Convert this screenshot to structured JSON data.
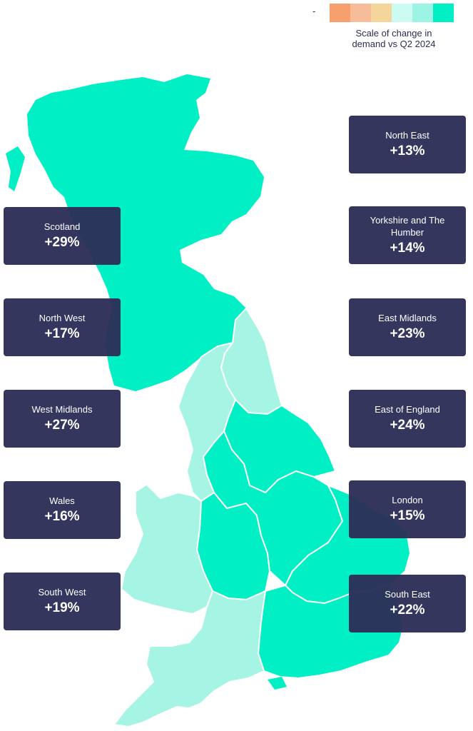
{
  "legend": {
    "minus_sign": "-",
    "plus_sign": "+",
    "swatch_colors": [
      "#f7a06e",
      "#f7bd99",
      "#f4d69c",
      "#ccfbf1",
      "#9cf5e4",
      "#00efc4"
    ],
    "caption_line1": "Scale of change in",
    "caption_line2": "demand vs Q2 2024"
  },
  "map_colors": {
    "strong_increase": "#00efc4",
    "moderate_increase": "#a6f5e4",
    "border": "#ffffff",
    "card_background": "#2c2e56"
  },
  "regions": [
    {
      "name": "North East",
      "change": "+13%"
    },
    {
      "name": "Yorkshire and The Humber",
      "change": "+14%"
    },
    {
      "name": "East Midlands",
      "change": "+23%"
    },
    {
      "name": "East of England",
      "change": "+24%"
    },
    {
      "name": "London",
      "change": "+15%"
    },
    {
      "name": "South East",
      "change": "+22%"
    },
    {
      "name": "Scotland",
      "change": "+29%"
    },
    {
      "name": "North West",
      "change": "+17%"
    },
    {
      "name": "West Midlands",
      "change": "+27%"
    },
    {
      "name": "Wales",
      "change": "+16%"
    },
    {
      "name": "South West",
      "change": "+19%"
    }
  ]
}
